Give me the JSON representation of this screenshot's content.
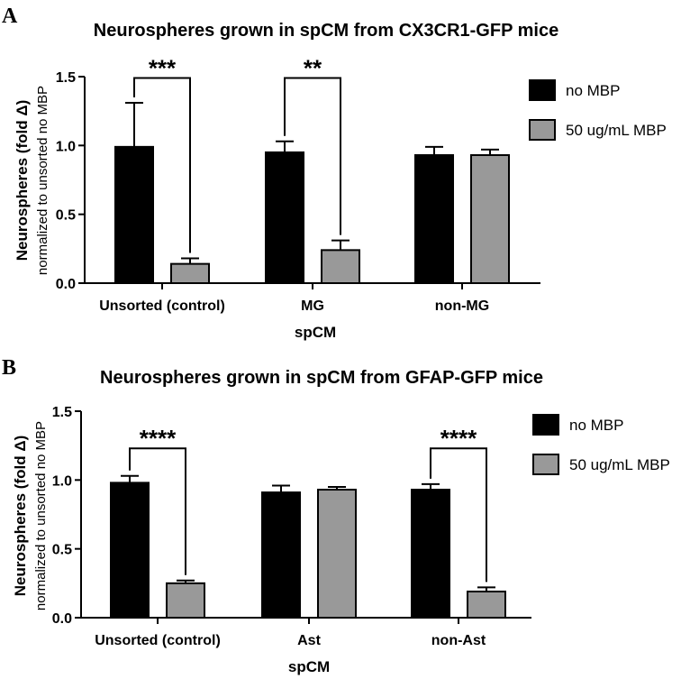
{
  "panels": [
    {
      "letter": "A"
    },
    {
      "letter": "B"
    }
  ],
  "chart_data": [
    {
      "type": "bar",
      "title": "Neurospheres grown in spCM from CX3CR1-GFP mice",
      "xlabel": "spCM",
      "ylabel_main": "Neurospheres (fold Δ)",
      "ylabel_sub": "normalized to unsorted no MBP",
      "ylim": [
        0,
        1.5
      ],
      "yticks": [
        "0.0",
        "0.5",
        "1.0",
        "1.5"
      ],
      "categories": [
        "Unsorted (control)",
        "MG",
        "non-MG"
      ],
      "series": [
        {
          "name": "no MBP",
          "color": "#000000",
          "values": [
            0.99,
            0.95,
            0.93
          ],
          "errors": [
            0.32,
            0.08,
            0.06
          ]
        },
        {
          "name": "50 ug/mL MBP",
          "color": "#999999",
          "values": [
            0.14,
            0.24,
            0.93
          ],
          "errors": [
            0.04,
            0.07,
            0.04
          ]
        }
      ],
      "significance": [
        {
          "category": 0,
          "label": "***",
          "bracket_top": 1.49
        },
        {
          "category": 1,
          "label": "**",
          "bracket_top": 1.49
        }
      ],
      "legend_position": "top-right"
    },
    {
      "type": "bar",
      "title": "Neurospheres grown in spCM from GFAP-GFP mice",
      "xlabel": "spCM",
      "ylabel_main": "Neurospheres (fold Δ)",
      "ylabel_sub": "normalized to unsorted no MBP",
      "ylim": [
        0,
        1.5
      ],
      "yticks": [
        "0.0",
        "0.5",
        "1.0",
        "1.5"
      ],
      "categories": [
        "Unsorted (control)",
        "Ast",
        "non-Ast"
      ],
      "series": [
        {
          "name": "no MBP",
          "color": "#000000",
          "values": [
            0.98,
            0.91,
            0.93
          ],
          "errors": [
            0.05,
            0.05,
            0.04
          ]
        },
        {
          "name": "50 ug/mL MBP",
          "color": "#999999",
          "values": [
            0.25,
            0.93,
            0.19
          ],
          "errors": [
            0.02,
            0.02,
            0.03
          ]
        }
      ],
      "significance": [
        {
          "category": 0,
          "label": "****",
          "bracket_top": 1.23
        },
        {
          "category": 2,
          "label": "****",
          "bracket_top": 1.23
        }
      ],
      "legend_position": "top-right"
    }
  ]
}
